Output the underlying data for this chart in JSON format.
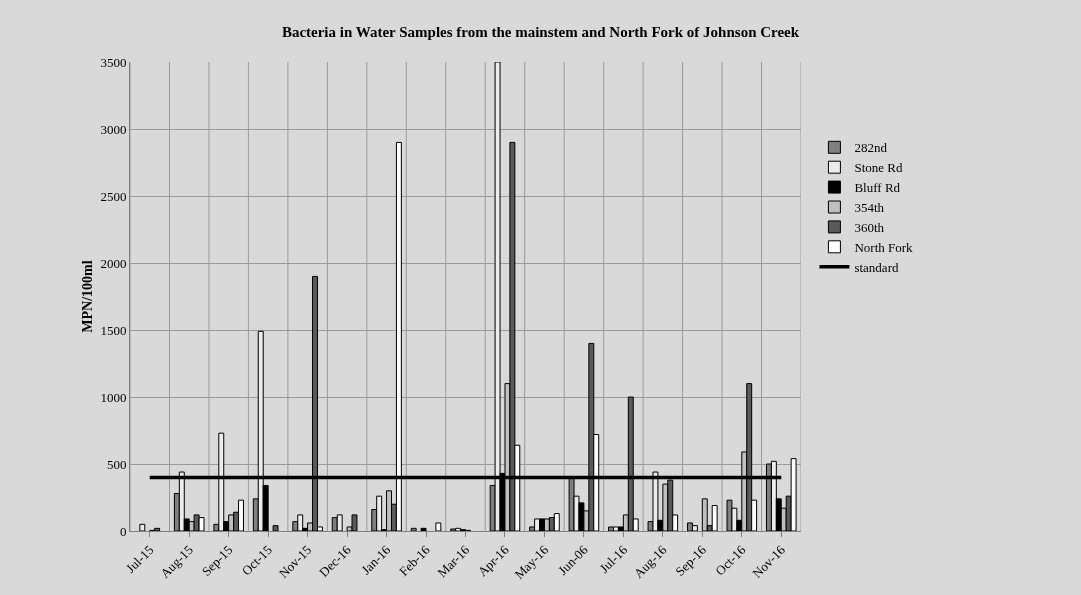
{
  "chart_data": {
    "type": "bar",
    "title": "Bacteria in Water Samples from the mainstem and North Fork of Johnson Creek",
    "ylabel": "MPN/100ml",
    "categories": [
      "Jul-15",
      "Aug-15",
      "Sep-15",
      "Oct-15",
      "Nov-15",
      "Dec-16",
      "Jan-16",
      "Feb-16",
      "Mar-16",
      "Apr-16",
      "May-16",
      "Jun-06",
      "Jul-16",
      "Aug-16",
      "Sep-16",
      "Oct-16",
      "Nov-16"
    ],
    "series": [
      {
        "name": "282nd",
        "color": "#7f7f7f",
        "values": [
          null,
          280,
          50,
          240,
          70,
          100,
          160,
          20,
          15,
          340,
          30,
          400,
          30,
          70,
          60,
          230,
          500
        ]
      },
      {
        "name": "Stone Rd",
        "color": "#ececec",
        "values": [
          50,
          440,
          730,
          1490,
          120,
          120,
          260,
          null,
          20,
          3500,
          90,
          260,
          30,
          440,
          40,
          170,
          520
        ]
      },
      {
        "name": "Bluff Rd",
        "color": "#000000",
        "values": [
          null,
          90,
          70,
          340,
          20,
          null,
          10,
          20,
          10,
          430,
          90,
          210,
          30,
          80,
          null,
          80,
          240
        ]
      },
      {
        "name": "354th",
        "color": "#bfbfbf",
        "values": [
          5,
          70,
          120,
          null,
          60,
          30,
          300,
          null,
          5,
          1100,
          90,
          150,
          120,
          350,
          240,
          590,
          170
        ]
      },
      {
        "name": "360th",
        "color": "#5a5a5a",
        "values": [
          20,
          120,
          140,
          40,
          1900,
          120,
          200,
          null,
          null,
          2900,
          100,
          1400,
          1000,
          380,
          40,
          1100,
          260
        ]
      },
      {
        "name": "North Fork",
        "color": "#ffffff",
        "values": [
          null,
          100,
          230,
          null,
          30,
          null,
          2900,
          60,
          null,
          640,
          130,
          720,
          90,
          120,
          190,
          230,
          540
        ]
      },
      {
        "name": "standard",
        "type": "line",
        "color": "#000000",
        "line_style": "solid",
        "marker": "none",
        "values": [
          400,
          400,
          400,
          400,
          400,
          400,
          400,
          400,
          400,
          400,
          400,
          400,
          400,
          400,
          400,
          400,
          400
        ]
      }
    ],
    "ylim": [
      0,
      3500
    ],
    "yticks": [
      0,
      500,
      1000,
      1500,
      2000,
      2500,
      3000,
      3500
    ],
    "grid": true,
    "legend": "right"
  }
}
